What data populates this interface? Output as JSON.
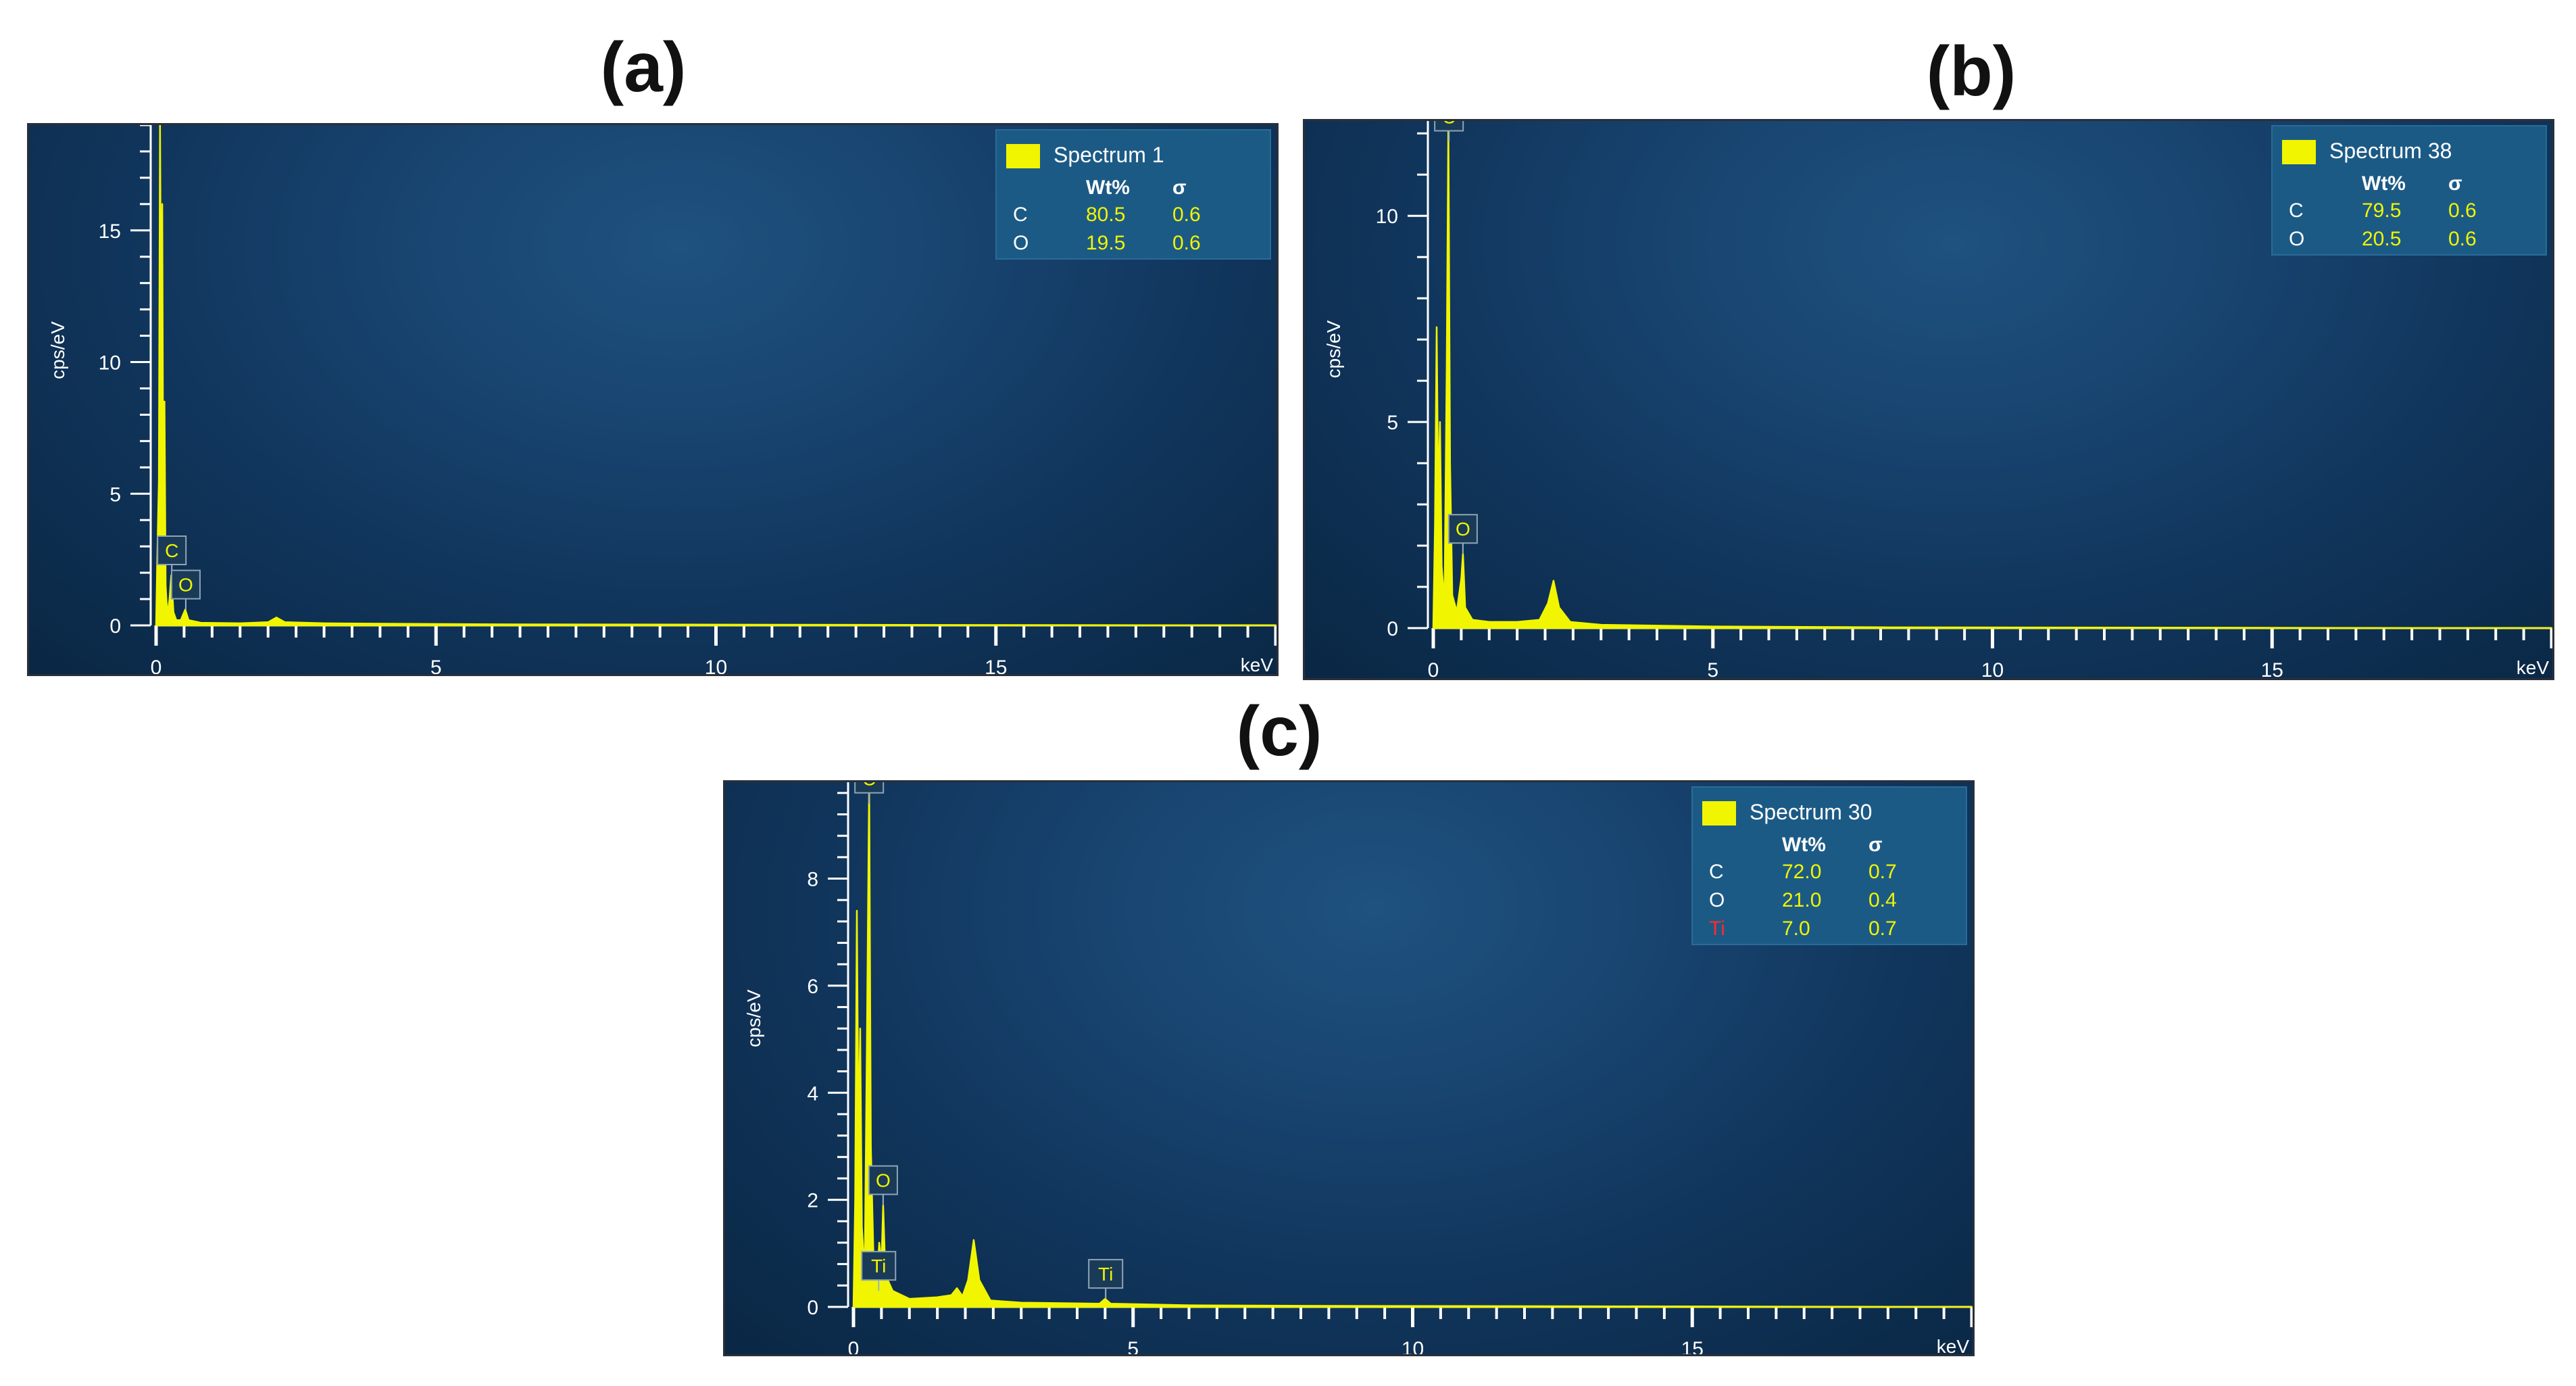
{
  "chart_data": [
    {
      "type": "line",
      "panel_label": "(a)",
      "ylabel": "cps/eV",
      "xlabel": "keV",
      "xlim": [
        0,
        20
      ],
      "ylim": [
        0,
        19
      ],
      "xticks": [
        0,
        5,
        10,
        15
      ],
      "yticks": [
        0,
        5,
        10,
        15
      ],
      "legend": {
        "spectrum": "Spectrum 1",
        "col_wt": "Wt%",
        "col_sigma": "σ",
        "rows": [
          {
            "element": "C",
            "wt": "80.5",
            "sigma": "0.6",
            "color": "#ffffff"
          },
          {
            "element": "O",
            "wt": "19.5",
            "sigma": "0.6",
            "color": "#ffffff"
          }
        ]
      },
      "peak_labels": [
        {
          "text": "C",
          "x": 0.28,
          "y": 1.9
        },
        {
          "text": "O",
          "x": 0.53,
          "y": 0.6
        }
      ],
      "spectrum": [
        [
          0.0,
          0.0
        ],
        [
          0.02,
          2.5
        ],
        [
          0.05,
          5.5
        ],
        [
          0.07,
          19
        ],
        [
          0.09,
          11
        ],
        [
          0.11,
          16
        ],
        [
          0.13,
          2.5
        ],
        [
          0.15,
          8.5
        ],
        [
          0.17,
          1.5
        ],
        [
          0.2,
          0.4
        ],
        [
          0.24,
          1.0
        ],
        [
          0.27,
          1.9
        ],
        [
          0.31,
          0.5
        ],
        [
          0.36,
          0.2
        ],
        [
          0.44,
          0.2
        ],
        [
          0.52,
          0.6
        ],
        [
          0.58,
          0.2
        ],
        [
          0.8,
          0.1
        ],
        [
          1.5,
          0.08
        ],
        [
          2.0,
          0.12
        ],
        [
          2.15,
          0.3
        ],
        [
          2.3,
          0.12
        ],
        [
          3.0,
          0.08
        ],
        [
          6.0,
          0.04
        ],
        [
          20.0,
          0.0
        ]
      ]
    },
    {
      "type": "line",
      "panel_label": "(b)",
      "ylabel": "cps/eV",
      "xlabel": "keV",
      "xlim": [
        0,
        20
      ],
      "ylim": [
        0,
        12.3
      ],
      "xticks": [
        0,
        5,
        10,
        15
      ],
      "yticks": [
        0,
        5,
        10
      ],
      "legend": {
        "spectrum": "Spectrum 38",
        "col_wt": "Wt%",
        "col_sigma": "σ",
        "rows": [
          {
            "element": "C",
            "wt": "79.5",
            "sigma": "0.6",
            "color": "#ffffff"
          },
          {
            "element": "O",
            "wt": "20.5",
            "sigma": "0.6",
            "color": "#ffffff"
          }
        ]
      },
      "peak_labels": [
        {
          "text": "C",
          "x": 0.28,
          "y": 11.8
        },
        {
          "text": "O",
          "x": 0.53,
          "y": 1.8
        }
      ],
      "spectrum": [
        [
          0.0,
          0.0
        ],
        [
          0.03,
          2.5
        ],
        [
          0.06,
          7.3
        ],
        [
          0.09,
          3.0
        ],
        [
          0.12,
          5.0
        ],
        [
          0.15,
          1.5
        ],
        [
          0.2,
          0.6
        ],
        [
          0.24,
          6.4
        ],
        [
          0.27,
          12.3
        ],
        [
          0.3,
          4.0
        ],
        [
          0.34,
          0.8
        ],
        [
          0.42,
          0.4
        ],
        [
          0.5,
          1.2
        ],
        [
          0.53,
          1.8
        ],
        [
          0.57,
          0.5
        ],
        [
          0.7,
          0.2
        ],
        [
          1.0,
          0.15
        ],
        [
          1.5,
          0.15
        ],
        [
          1.9,
          0.2
        ],
        [
          2.05,
          0.6
        ],
        [
          2.15,
          1.15
        ],
        [
          2.25,
          0.5
        ],
        [
          2.45,
          0.15
        ],
        [
          3.0,
          0.08
        ],
        [
          5.0,
          0.04
        ],
        [
          8.0,
          0.02
        ],
        [
          20.0,
          0.0
        ]
      ]
    },
    {
      "type": "line",
      "panel_label": "(c)",
      "ylabel": "cps/eV",
      "xlabel": "keV",
      "xlim": [
        0,
        20
      ],
      "ylim": [
        0,
        9.8
      ],
      "xticks": [
        0,
        5,
        10,
        15
      ],
      "yticks": [
        0,
        2,
        4,
        6,
        8
      ],
      "legend": {
        "spectrum": "Spectrum 30",
        "col_wt": "Wt%",
        "col_sigma": "σ",
        "rows": [
          {
            "element": "C",
            "wt": "72.0",
            "sigma": "0.7",
            "color": "#ffffff"
          },
          {
            "element": "O",
            "wt": "21.0",
            "sigma": "0.4",
            "color": "#ffffff"
          },
          {
            "element": "Ti",
            "wt": "7.0",
            "sigma": "0.7",
            "color": "#ff2a2a"
          }
        ]
      },
      "peak_labels": [
        {
          "text": "C",
          "x": 0.28,
          "y": 9.4
        },
        {
          "text": "O",
          "x": 0.53,
          "y": 1.9
        },
        {
          "text": "Ti",
          "x": 0.45,
          "y": 0.3
        },
        {
          "text": "Ti",
          "x": 4.51,
          "y": 0.15
        }
      ],
      "spectrum": [
        [
          0.0,
          0.0
        ],
        [
          0.03,
          2.0
        ],
        [
          0.06,
          7.4
        ],
        [
          0.09,
          3.0
        ],
        [
          0.12,
          5.2
        ],
        [
          0.15,
          1.5
        ],
        [
          0.2,
          0.6
        ],
        [
          0.24,
          5.0
        ],
        [
          0.28,
          9.8
        ],
        [
          0.31,
          3.0
        ],
        [
          0.36,
          0.8
        ],
        [
          0.42,
          0.4
        ],
        [
          0.46,
          1.2
        ],
        [
          0.5,
          0.8
        ],
        [
          0.53,
          1.9
        ],
        [
          0.57,
          0.6
        ],
        [
          0.7,
          0.3
        ],
        [
          1.0,
          0.15
        ],
        [
          1.5,
          0.18
        ],
        [
          1.75,
          0.22
        ],
        [
          1.85,
          0.35
        ],
        [
          1.95,
          0.2
        ],
        [
          2.05,
          0.5
        ],
        [
          2.15,
          1.25
        ],
        [
          2.25,
          0.5
        ],
        [
          2.45,
          0.12
        ],
        [
          3.0,
          0.08
        ],
        [
          4.4,
          0.06
        ],
        [
          4.5,
          0.15
        ],
        [
          4.6,
          0.06
        ],
        [
          6.0,
          0.03
        ],
        [
          8.0,
          0.02
        ],
        [
          20.0,
          0.0
        ]
      ]
    }
  ]
}
